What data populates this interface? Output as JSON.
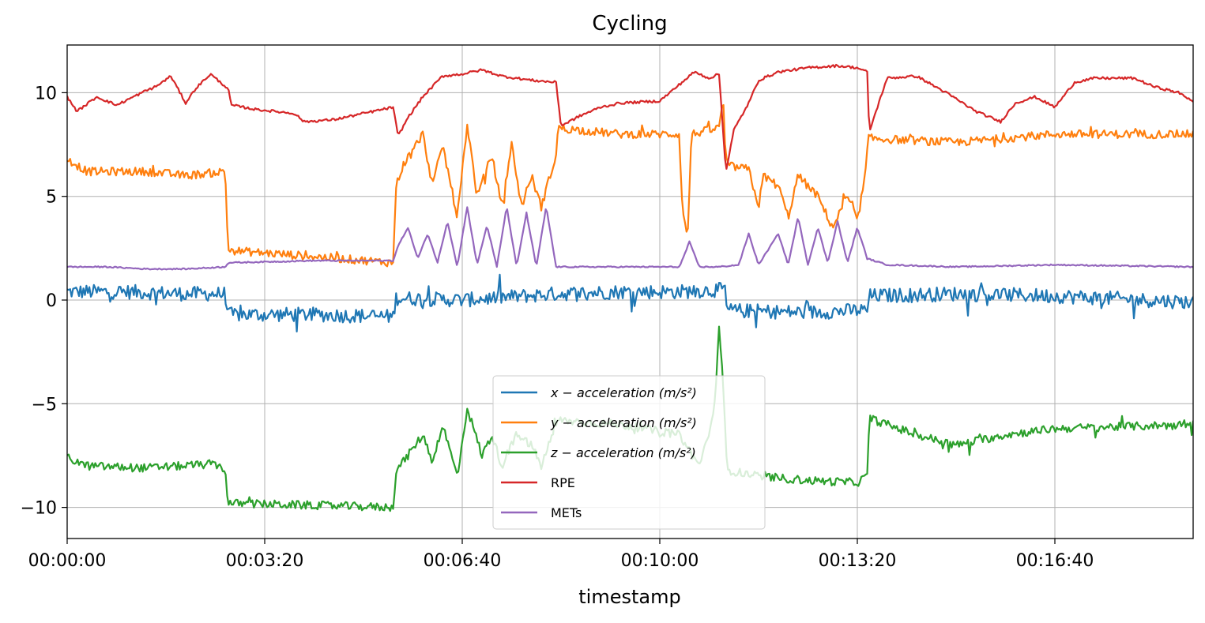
{
  "chart_data": {
    "type": "line",
    "title": "Cycling",
    "xlabel": "timestamp",
    "ylabel": "",
    "grid": true,
    "legend_position": "lower-center",
    "x_unit": "seconds",
    "xlim": [
      0,
      1140
    ],
    "ylim": [
      -11.5,
      12.3
    ],
    "x_ticks": [
      0,
      200,
      400,
      600,
      800,
      1000
    ],
    "x_tick_labels": [
      "00:00:00",
      "00:03:20",
      "00:06:40",
      "00:10:00",
      "00:13:20",
      "00:16:40"
    ],
    "y_ticks": [
      10,
      5,
      0,
      -5,
      -10
    ],
    "y_tick_labels": [
      "10",
      "5",
      "0",
      "−5",
      "−10"
    ],
    "series": [
      {
        "name": "x − acceleration (m/s²)",
        "color": "#1f77b4",
        "noise": 0.35,
        "points": [
          [
            0,
            0.4
          ],
          [
            60,
            0.4
          ],
          [
            120,
            0.3
          ],
          [
            160,
            0.3
          ],
          [
            163,
            -0.7
          ],
          [
            250,
            -0.7
          ],
          [
            330,
            -0.8
          ],
          [
            333,
            0.1
          ],
          [
            400,
            0.0
          ],
          [
            495,
            0.3
          ],
          [
            560,
            0.4
          ],
          [
            620,
            0.4
          ],
          [
            666,
            0.5
          ],
          [
            668,
            -0.5
          ],
          [
            750,
            -0.6
          ],
          [
            800,
            -0.5
          ],
          [
            810,
            -0.5
          ],
          [
            812,
            0.2
          ],
          [
            900,
            0.3
          ],
          [
            1000,
            0.2
          ],
          [
            1140,
            -0.1
          ]
        ]
      },
      {
        "name": "y − acceleration (m/s²)",
        "color": "#ff7f0e",
        "noise": 0.2,
        "points": [
          [
            0,
            6.8
          ],
          [
            20,
            6.2
          ],
          [
            80,
            6.2
          ],
          [
            120,
            6.0
          ],
          [
            160,
            6.2
          ],
          [
            163,
            2.4
          ],
          [
            250,
            2.1
          ],
          [
            330,
            1.8
          ],
          [
            333,
            5.5
          ],
          [
            340,
            6.5
          ],
          [
            360,
            8.0
          ],
          [
            370,
            5.5
          ],
          [
            380,
            7.5
          ],
          [
            395,
            4.0
          ],
          [
            405,
            8.5
          ],
          [
            415,
            5.0
          ],
          [
            430,
            7.0
          ],
          [
            440,
            4.5
          ],
          [
            450,
            7.5
          ],
          [
            460,
            4.5
          ],
          [
            470,
            6.0
          ],
          [
            480,
            4.5
          ],
          [
            495,
            7.0
          ],
          [
            497,
            8.3
          ],
          [
            560,
            8.0
          ],
          [
            620,
            8.0
          ],
          [
            622,
            5.0
          ],
          [
            628,
            2.8
          ],
          [
            632,
            8.0
          ],
          [
            660,
            8.3
          ],
          [
            664,
            9.8
          ],
          [
            667,
            6.5
          ],
          [
            690,
            6.3
          ],
          [
            700,
            4.5
          ],
          [
            705,
            6.0
          ],
          [
            720,
            5.5
          ],
          [
            730,
            4.0
          ],
          [
            740,
            6.0
          ],
          [
            760,
            5.0
          ],
          [
            775,
            3.5
          ],
          [
            790,
            5.0
          ],
          [
            800,
            3.8
          ],
          [
            808,
            6.0
          ],
          [
            811,
            7.8
          ],
          [
            900,
            7.6
          ],
          [
            1000,
            8.0
          ],
          [
            1140,
            8.0
          ]
        ]
      },
      {
        "name": "z − acceleration (m/s²)",
        "color": "#2ca02c",
        "noise": 0.2,
        "points": [
          [
            0,
            -7.6
          ],
          [
            20,
            -8.0
          ],
          [
            80,
            -8.1
          ],
          [
            150,
            -7.9
          ],
          [
            160,
            -8.2
          ],
          [
            163,
            -9.8
          ],
          [
            250,
            -9.9
          ],
          [
            330,
            -10.0
          ],
          [
            333,
            -8.2
          ],
          [
            345,
            -7.5
          ],
          [
            360,
            -6.5
          ],
          [
            370,
            -7.8
          ],
          [
            380,
            -6.0
          ],
          [
            395,
            -8.5
          ],
          [
            405,
            -5.2
          ],
          [
            420,
            -7.5
          ],
          [
            430,
            -6.5
          ],
          [
            440,
            -8.0
          ],
          [
            455,
            -6.5
          ],
          [
            470,
            -7.0
          ],
          [
            480,
            -8.0
          ],
          [
            495,
            -6.0
          ],
          [
            497,
            -5.8
          ],
          [
            560,
            -6.0
          ],
          [
            620,
            -6.5
          ],
          [
            640,
            -8.0
          ],
          [
            655,
            -5.5
          ],
          [
            660,
            -1.2
          ],
          [
            664,
            -4.0
          ],
          [
            668,
            -8.2
          ],
          [
            700,
            -8.5
          ],
          [
            750,
            -8.7
          ],
          [
            800,
            -8.8
          ],
          [
            810,
            -8.5
          ],
          [
            812,
            -5.7
          ],
          [
            860,
            -6.5
          ],
          [
            900,
            -7.0
          ],
          [
            950,
            -6.5
          ],
          [
            1000,
            -6.2
          ],
          [
            1140,
            -6.0
          ]
        ]
      },
      {
        "name": "RPE",
        "color": "#d62728",
        "noise": 0.06,
        "points": [
          [
            0,
            9.8
          ],
          [
            10,
            9.1
          ],
          [
            30,
            9.8
          ],
          [
            50,
            9.4
          ],
          [
            80,
            10.1
          ],
          [
            90,
            10.3
          ],
          [
            105,
            10.8
          ],
          [
            120,
            9.5
          ],
          [
            130,
            10.2
          ],
          [
            145,
            10.9
          ],
          [
            155,
            10.5
          ],
          [
            163,
            10.2
          ],
          [
            166,
            9.4
          ],
          [
            190,
            9.2
          ],
          [
            230,
            9.0
          ],
          [
            240,
            8.6
          ],
          [
            270,
            8.7
          ],
          [
            300,
            9.0
          ],
          [
            330,
            9.3
          ],
          [
            335,
            7.9
          ],
          [
            345,
            8.8
          ],
          [
            360,
            9.8
          ],
          [
            380,
            10.8
          ],
          [
            400,
            10.9
          ],
          [
            420,
            11.1
          ],
          [
            440,
            10.8
          ],
          [
            470,
            10.6
          ],
          [
            495,
            10.5
          ],
          [
            500,
            8.4
          ],
          [
            520,
            8.9
          ],
          [
            540,
            9.3
          ],
          [
            560,
            9.5
          ],
          [
            600,
            9.6
          ],
          [
            620,
            10.4
          ],
          [
            635,
            11.0
          ],
          [
            650,
            10.7
          ],
          [
            660,
            10.9
          ],
          [
            667,
            6.2
          ],
          [
            675,
            8.2
          ],
          [
            690,
            9.5
          ],
          [
            700,
            10.6
          ],
          [
            720,
            11.0
          ],
          [
            750,
            11.2
          ],
          [
            780,
            11.3
          ],
          [
            800,
            11.2
          ],
          [
            810,
            11.0
          ],
          [
            812,
            8.1
          ],
          [
            830,
            10.7
          ],
          [
            860,
            10.8
          ],
          [
            890,
            10.0
          ],
          [
            920,
            9.1
          ],
          [
            945,
            8.6
          ],
          [
            960,
            9.5
          ],
          [
            980,
            9.8
          ],
          [
            1000,
            9.3
          ],
          [
            1020,
            10.5
          ],
          [
            1040,
            10.7
          ],
          [
            1080,
            10.7
          ],
          [
            1100,
            10.3
          ],
          [
            1125,
            10.0
          ],
          [
            1140,
            9.6
          ]
        ]
      },
      {
        "name": "METs",
        "color": "#9467bd",
        "noise": 0.03,
        "points": [
          [
            0,
            1.6
          ],
          [
            40,
            1.6
          ],
          [
            80,
            1.5
          ],
          [
            120,
            1.5
          ],
          [
            160,
            1.6
          ],
          [
            163,
            1.8
          ],
          [
            250,
            1.9
          ],
          [
            330,
            1.9
          ],
          [
            335,
            2.6
          ],
          [
            345,
            3.5
          ],
          [
            355,
            2.0
          ],
          [
            365,
            3.2
          ],
          [
            375,
            1.8
          ],
          [
            385,
            3.8
          ],
          [
            395,
            1.6
          ],
          [
            405,
            4.5
          ],
          [
            415,
            1.7
          ],
          [
            425,
            3.6
          ],
          [
            435,
            1.6
          ],
          [
            445,
            4.5
          ],
          [
            455,
            1.6
          ],
          [
            465,
            4.2
          ],
          [
            475,
            1.6
          ],
          [
            485,
            4.5
          ],
          [
            495,
            1.6
          ],
          [
            500,
            1.6
          ],
          [
            560,
            1.6
          ],
          [
            620,
            1.6
          ],
          [
            630,
            2.8
          ],
          [
            640,
            1.6
          ],
          [
            660,
            1.6
          ],
          [
            680,
            1.7
          ],
          [
            690,
            3.2
          ],
          [
            700,
            1.7
          ],
          [
            720,
            3.2
          ],
          [
            730,
            1.7
          ],
          [
            740,
            4.0
          ],
          [
            750,
            1.7
          ],
          [
            760,
            3.5
          ],
          [
            770,
            1.8
          ],
          [
            780,
            3.8
          ],
          [
            790,
            1.8
          ],
          [
            800,
            3.5
          ],
          [
            810,
            2.0
          ],
          [
            830,
            1.7
          ],
          [
            900,
            1.6
          ],
          [
            1000,
            1.7
          ],
          [
            1140,
            1.6
          ]
        ]
      }
    ]
  }
}
